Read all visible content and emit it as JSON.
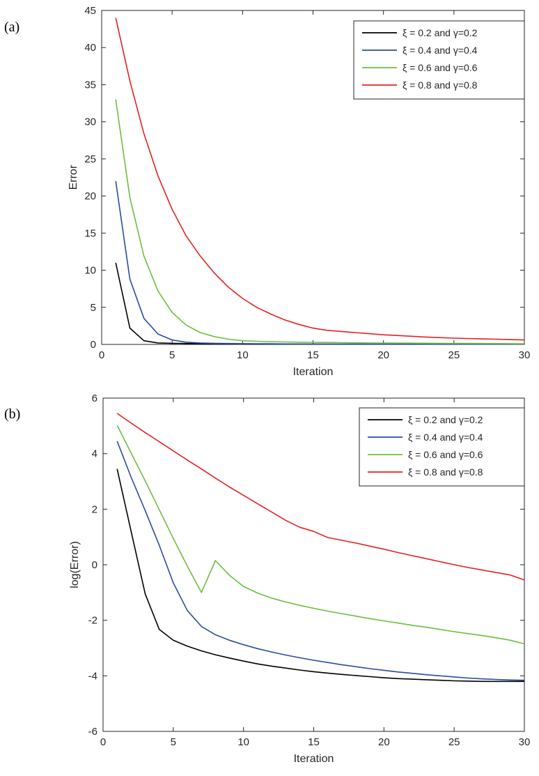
{
  "chart_data": [
    {
      "type": "line",
      "panel_label": "(a)",
      "xlabel": "Iteration",
      "ylabel": "Error",
      "xlim": [
        0,
        30
      ],
      "ylim": [
        0,
        45
      ],
      "xticks": [
        0,
        5,
        10,
        15,
        20,
        25,
        30
      ],
      "yticks": [
        0,
        5,
        10,
        15,
        20,
        25,
        30,
        35,
        40,
        45
      ],
      "grid": false,
      "legend_position": "top-right",
      "series": [
        {
          "name": "ξ = 0.2 and γ=0.2",
          "color": "#000000",
          "x": [
            1,
            2,
            3,
            4,
            5,
            6,
            7,
            8,
            9,
            10,
            11,
            12,
            13,
            14,
            15,
            16,
            17,
            18,
            19,
            20,
            21,
            22,
            23,
            24,
            25,
            26,
            27,
            28,
            29,
            30
          ],
          "y": [
            11,
            2.2,
            0.5,
            0.2,
            0.15,
            0.12,
            0.1,
            0.09,
            0.08,
            0.07,
            0.06,
            0.05,
            0.05,
            0.04,
            0.04,
            0.04,
            0.03,
            0.03,
            0.03,
            0.03,
            0.03,
            0.03,
            0.03,
            0.03,
            0.03,
            0.03,
            0.03,
            0.03,
            0.03,
            0.03
          ]
        },
        {
          "name": "ξ = 0.4 and γ=0.4",
          "color": "#2b4ba0",
          "x": [
            1,
            2,
            3,
            4,
            5,
            6,
            7,
            8,
            9,
            10,
            11,
            12,
            13,
            14,
            15,
            16,
            17,
            18,
            19,
            20,
            21,
            22,
            23,
            24,
            25,
            26,
            27,
            28,
            29,
            30
          ],
          "y": [
            22,
            8.8,
            3.5,
            1.4,
            0.6,
            0.3,
            0.2,
            0.15,
            0.12,
            0.1,
            0.09,
            0.08,
            0.07,
            0.06,
            0.06,
            0.05,
            0.05,
            0.05,
            0.04,
            0.04,
            0.04,
            0.04,
            0.04,
            0.04,
            0.04,
            0.04,
            0.04,
            0.04,
            0.04,
            0.04
          ]
        },
        {
          "name": "ξ = 0.6 and γ=0.6",
          "color": "#6abf3f",
          "x": [
            1,
            2,
            3,
            4,
            5,
            6,
            7,
            8,
            9,
            10,
            11,
            12,
            13,
            14,
            15,
            16,
            17,
            18,
            19,
            20,
            21,
            22,
            23,
            24,
            25,
            26,
            27,
            28,
            29,
            30
          ],
          "y": [
            33,
            19.8,
            11.9,
            7.2,
            4.3,
            2.6,
            1.6,
            1.05,
            0.7,
            0.5,
            0.42,
            0.37,
            0.33,
            0.3,
            0.28,
            0.26,
            0.24,
            0.22,
            0.2,
            0.19,
            0.18,
            0.17,
            0.16,
            0.15,
            0.14,
            0.13,
            0.12,
            0.11,
            0.1,
            0.09
          ]
        },
        {
          "name": "ξ = 0.8 and γ=0.8",
          "color": "#e62020",
          "x": [
            1,
            2,
            3,
            4,
            5,
            6,
            7,
            8,
            9,
            10,
            11,
            12,
            13,
            14,
            15,
            16,
            17,
            18,
            19,
            20,
            21,
            22,
            23,
            24,
            25,
            26,
            27,
            28,
            29,
            30
          ],
          "y": [
            44,
            35.5,
            28.4,
            22.7,
            18.2,
            14.6,
            11.9,
            9.6,
            7.7,
            6.2,
            5.0,
            4.1,
            3.3,
            2.7,
            2.2,
            1.9,
            1.75,
            1.6,
            1.45,
            1.3,
            1.2,
            1.1,
            1.0,
            0.92,
            0.85,
            0.8,
            0.74,
            0.7,
            0.65,
            0.6
          ]
        }
      ]
    },
    {
      "type": "line",
      "panel_label": "(b)",
      "xlabel": "Iteration",
      "ylabel": "log(Error)",
      "xlim": [
        0,
        30
      ],
      "ylim": [
        -6,
        6
      ],
      "xticks": [
        0,
        5,
        10,
        15,
        20,
        25,
        30
      ],
      "yticks": [
        -6,
        -4,
        -2,
        0,
        2,
        4,
        6
      ],
      "grid": false,
      "legend_position": "top-right",
      "series": [
        {
          "name": "ξ = 0.2 and γ=0.2",
          "color": "#000000",
          "x": [
            1,
            2,
            3,
            4,
            5,
            6,
            7,
            8,
            9,
            10,
            11,
            12,
            13,
            14,
            15,
            16,
            17,
            18,
            19,
            20,
            21,
            22,
            23,
            24,
            25,
            26,
            27,
            28,
            29,
            30
          ],
          "y": [
            3.45,
            1.2,
            -1.05,
            -2.33,
            -2.72,
            -2.93,
            -3.1,
            -3.24,
            -3.36,
            -3.47,
            -3.57,
            -3.65,
            -3.72,
            -3.79,
            -3.85,
            -3.9,
            -3.95,
            -3.99,
            -4.03,
            -4.07,
            -4.1,
            -4.12,
            -4.14,
            -4.16,
            -4.18,
            -4.19,
            -4.2,
            -4.2,
            -4.2,
            -4.2
          ]
        },
        {
          "name": "ξ = 0.4 and γ=0.4",
          "color": "#2b4ba0",
          "x": [
            1,
            2,
            3,
            4,
            5,
            6,
            7,
            8,
            9,
            10,
            11,
            12,
            13,
            14,
            15,
            16,
            17,
            18,
            19,
            20,
            21,
            22,
            23,
            24,
            25,
            26,
            27,
            28,
            29,
            30
          ],
          "y": [
            4.45,
            3.15,
            1.95,
            0.7,
            -0.65,
            -1.65,
            -2.22,
            -2.52,
            -2.72,
            -2.88,
            -3.02,
            -3.14,
            -3.25,
            -3.35,
            -3.44,
            -3.52,
            -3.6,
            -3.67,
            -3.74,
            -3.8,
            -3.86,
            -3.91,
            -3.96,
            -4.0,
            -4.04,
            -4.08,
            -4.11,
            -4.13,
            -4.15,
            -4.16
          ]
        },
        {
          "name": "ξ = 0.6 and γ=0.6",
          "color": "#6abf3f",
          "x": [
            1,
            2,
            3,
            4,
            5,
            6,
            7,
            8,
            9,
            10,
            11,
            12,
            13,
            14,
            15,
            16,
            17,
            18,
            19,
            20,
            21,
            22,
            23,
            24,
            25,
            26,
            27,
            28,
            29,
            30
          ],
          "y": [
            5.02,
            4.02,
            3.02,
            1.98,
            0.95,
            -0.05,
            -1.0,
            0.15,
            -0.38,
            -0.78,
            -1.02,
            -1.2,
            -1.34,
            -1.46,
            -1.57,
            -1.67,
            -1.76,
            -1.85,
            -1.94,
            -2.02,
            -2.1,
            -2.18,
            -2.25,
            -2.33,
            -2.41,
            -2.48,
            -2.55,
            -2.63,
            -2.72,
            -2.85
          ]
        },
        {
          "name": "ξ = 0.8 and γ=0.8",
          "color": "#e62020",
          "x": [
            1,
            2,
            3,
            4,
            5,
            6,
            7,
            8,
            9,
            10,
            11,
            12,
            13,
            14,
            15,
            16,
            17,
            18,
            19,
            20,
            21,
            22,
            23,
            24,
            25,
            26,
            27,
            28,
            29,
            30
          ],
          "y": [
            5.45,
            5.1,
            4.76,
            4.43,
            4.1,
            3.77,
            3.45,
            3.12,
            2.8,
            2.5,
            2.2,
            1.9,
            1.6,
            1.35,
            1.2,
            0.98,
            0.88,
            0.78,
            0.67,
            0.56,
            0.44,
            0.33,
            0.22,
            0.11,
            0.0,
            -0.1,
            -0.19,
            -0.28,
            -0.37,
            -0.55
          ]
        }
      ]
    }
  ]
}
